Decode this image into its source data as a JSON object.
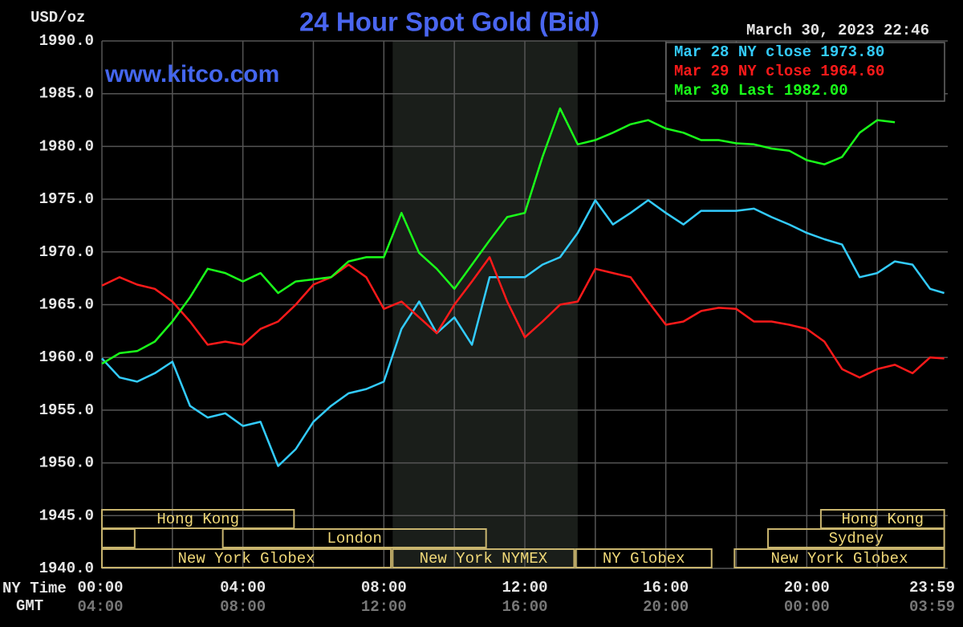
{
  "chart_data": {
    "type": "line",
    "title": "24 Hour Spot Gold (Bid)",
    "y_label": "USD/oz",
    "timestamp": "March 30, 2023 22:46",
    "watermark": "www.kitco.com",
    "x_label": "NY Time",
    "x2_label": "GMT",
    "x": [
      0,
      0.5,
      1,
      1.5,
      2,
      2.5,
      3,
      3.5,
      4,
      4.5,
      5,
      5.5,
      6,
      6.5,
      7,
      7.5,
      8,
      8.5,
      9,
      9.5,
      10,
      10.5,
      11,
      11.5,
      12,
      12.5,
      13,
      13.5,
      14,
      14.5,
      15,
      15.5,
      16,
      16.5,
      17,
      17.5,
      18,
      18.5,
      19,
      19.5,
      20,
      20.5,
      21,
      21.5,
      22,
      22.5,
      23,
      23.5,
      23.9
    ],
    "series": [
      {
        "name": "Mar 28 NY close 1973.80",
        "color": "#33ccff",
        "values": [
          1959.9,
          1958.1,
          1957.7,
          1958.5,
          1959.6,
          1955.4,
          1954.3,
          1954.7,
          1953.5,
          1953.9,
          1949.7,
          1951.3,
          1953.9,
          1955.4,
          1956.6,
          1957.0,
          1957.7,
          1962.7,
          1965.3,
          1962.3,
          1963.8,
          1961.2,
          1967.6,
          1967.6,
          1967.6,
          1968.8,
          1969.5,
          1971.8,
          1974.9,
          1972.6,
          1973.7,
          1974.9,
          1973.7,
          1972.6,
          1973.9,
          1973.9,
          1973.9,
          1974.1,
          1973.3,
          1972.6,
          1971.8,
          1971.2,
          1970.7,
          1967.6,
          1968.0,
          1969.1,
          1968.8,
          1966.5,
          1966.1
        ]
      },
      {
        "name": "Mar 29 NY close 1964.60",
        "color": "#ff1a1a",
        "values": [
          1966.8,
          1967.6,
          1966.9,
          1966.5,
          1965.3,
          1963.4,
          1961.2,
          1961.5,
          1961.2,
          1962.7,
          1963.4,
          1965.0,
          1966.9,
          1967.6,
          1968.8,
          1967.6,
          1964.6,
          1965.3,
          1963.8,
          1962.3,
          1965.0,
          1967.2,
          1969.5,
          1965.3,
          1961.9,
          1963.4,
          1965.0,
          1965.3,
          1968.4,
          1968.0,
          1967.6,
          1965.3,
          1963.1,
          1963.4,
          1964.4,
          1964.7,
          1964.6,
          1963.4,
          1963.4,
          1963.1,
          1962.7,
          1961.5,
          1958.9,
          1958.1,
          1958.9,
          1959.3,
          1958.5,
          1960.0,
          1959.9
        ]
      },
      {
        "name": "Mar 30 Last 1982.00",
        "color": "#1aff1a",
        "values": [
          1959.4,
          1960.4,
          1960.6,
          1961.5,
          1963.4,
          1965.7,
          1968.4,
          1968.0,
          1967.2,
          1968.0,
          1966.1,
          1967.2,
          1967.4,
          1967.6,
          1969.1,
          1969.5,
          1969.5,
          1973.7,
          1969.9,
          1968.4,
          1966.5,
          1968.8,
          1971.1,
          1973.3,
          1973.7,
          1979.0,
          1983.6,
          1980.2,
          1980.6,
          1981.3,
          1982.1,
          1982.5,
          1981.7,
          1981.3,
          1980.6,
          1980.6,
          1980.3,
          1980.2,
          1979.8,
          1979.6,
          1978.7,
          1978.3,
          1979.0,
          1981.3,
          1982.5,
          1982.3,
          null,
          null,
          null
        ]
      }
    ],
    "xlim": [
      0,
      24
    ],
    "ylim": [
      1940,
      1990
    ],
    "xticks": [
      {
        "value": 0,
        "label": "00:00"
      },
      {
        "value": 4,
        "label": "04:00"
      },
      {
        "value": 8,
        "label": "08:00"
      },
      {
        "value": 12,
        "label": "12:00"
      },
      {
        "value": 16,
        "label": "16:00"
      },
      {
        "value": 20,
        "label": "20:00"
      },
      {
        "value": 23.98,
        "label": "23:59"
      }
    ],
    "x2tick_labels": [
      "04:00",
      "08:00",
      "12:00",
      "16:00",
      "20:00",
      "00:00",
      "03:59"
    ],
    "xgrid": [
      0,
      2,
      4,
      6,
      8,
      10,
      12,
      14,
      16,
      18,
      20,
      22
    ],
    "yticks": [
      {
        "value": 1940,
        "label": "1940.0"
      },
      {
        "value": 1945,
        "label": "1945.0"
      },
      {
        "value": 1950,
        "label": "1950.0"
      },
      {
        "value": 1955,
        "label": "1955.0"
      },
      {
        "value": 1960,
        "label": "1960.0"
      },
      {
        "value": 1965,
        "label": "1965.0"
      },
      {
        "value": 1970,
        "label": "1970.0"
      },
      {
        "value": 1975,
        "label": "1975.0"
      },
      {
        "value": 1980,
        "label": "1980.0"
      },
      {
        "value": 1985,
        "label": "1985.0"
      },
      {
        "value": 1990,
        "label": "1990.0"
      }
    ],
    "shade": [
      8.25,
      13.5
    ],
    "sessions": [
      {
        "label": "Hong Kong",
        "start": 0,
        "end": 5.45,
        "row": 0
      },
      {
        "label": "Hong Kong",
        "start": 20.4,
        "end": 23.9,
        "row": 0
      },
      {
        "label": null,
        "start": 0,
        "end": 0.93,
        "row": 1
      },
      {
        "label": "London",
        "start": 3.43,
        "end": 10.9,
        "row": 1
      },
      {
        "label": "Sydney",
        "start": 18.9,
        "end": 23.9,
        "row": 1
      },
      {
        "label": "New York Globex",
        "start": 0,
        "end": 8.2,
        "row": 2
      },
      {
        "label": "New York NYMEX",
        "start": 8.25,
        "end": 13.4,
        "row": 2
      },
      {
        "label": "NY Globex",
        "start": 13.45,
        "end": 17.3,
        "row": 2
      },
      {
        "label": "New York Globex",
        "start": 17.95,
        "end": 23.9,
        "row": 2
      }
    ],
    "grid": true,
    "legend": "top-right"
  }
}
